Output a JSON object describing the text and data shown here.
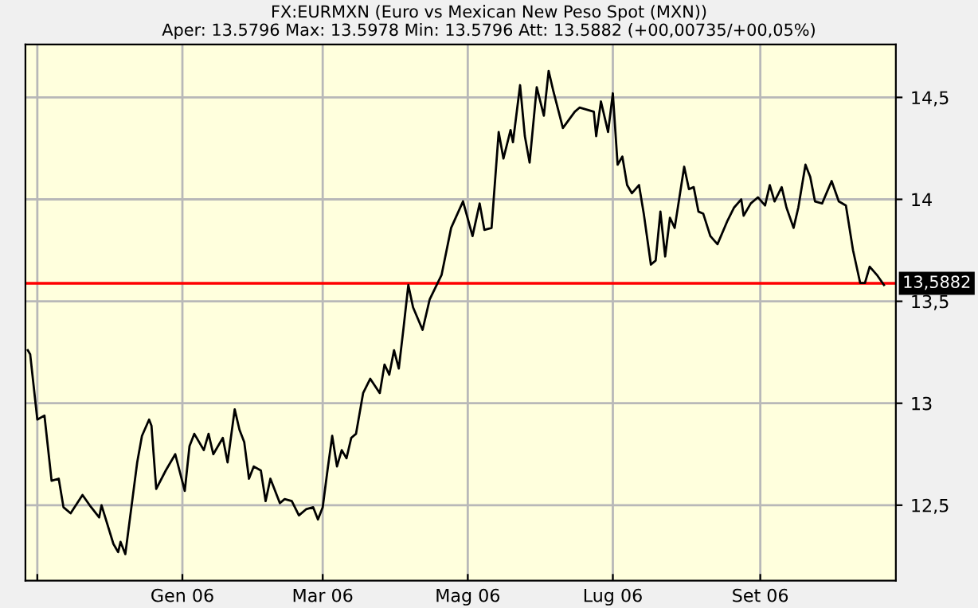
{
  "chart_data": {
    "type": "line",
    "title": "FX:EURMXN (Euro vs Mexican New Peso Spot (MXN))",
    "subtitle": "Aper: 13.5796 Max: 13.5978 Min: 13.5796 Att: 13.5882 (+00,00735/+00,05%)",
    "x": [
      "2005-10-28",
      "2005-10-29",
      "2005-11-01",
      "2005-11-04",
      "2005-11-07",
      "2005-11-10",
      "2005-11-12",
      "2005-11-15",
      "2005-11-20",
      "2005-11-23",
      "2005-11-27",
      "2005-11-28",
      "2005-12-03",
      "2005-12-05",
      "2005-12-06",
      "2005-12-08",
      "2005-12-11",
      "2005-12-13",
      "2005-12-15",
      "2005-12-18",
      "2005-12-19",
      "2005-12-21",
      "2005-12-25",
      "2005-12-29",
      "2006-01-02",
      "2006-01-04",
      "2006-01-06",
      "2006-01-10",
      "2006-01-12",
      "2006-01-14",
      "2006-01-18",
      "2006-01-20",
      "2006-01-23",
      "2006-01-25",
      "2006-01-27",
      "2006-01-29",
      "2006-01-31",
      "2006-02-03",
      "2006-02-05",
      "2006-02-07",
      "2006-02-11",
      "2006-02-13",
      "2006-02-16",
      "2006-02-19",
      "2006-02-22",
      "2006-02-25",
      "2006-02-27",
      "2006-03-01",
      "2006-03-03",
      "2006-03-05",
      "2006-03-07",
      "2006-03-09",
      "2006-03-11",
      "2006-03-13",
      "2006-03-15",
      "2006-03-18",
      "2006-03-21",
      "2006-03-25",
      "2006-03-27",
      "2006-03-29",
      "2006-03-31",
      "2006-04-02",
      "2006-04-04",
      "2006-04-06",
      "2006-04-08",
      "2006-04-12",
      "2006-04-15",
      "2006-04-20",
      "2006-04-24",
      "2006-04-29",
      "2006-05-03",
      "2006-05-06",
      "2006-05-08",
      "2006-05-11",
      "2006-05-14",
      "2006-05-16",
      "2006-05-19",
      "2006-05-20",
      "2006-05-23",
      "2006-05-25",
      "2006-05-27",
      "2006-05-30",
      "2006-06-02",
      "2006-06-04",
      "2006-06-06",
      "2006-06-10",
      "2006-06-15",
      "2006-06-17",
      "2006-06-23",
      "2006-06-24",
      "2006-06-26",
      "2006-06-29",
      "2006-07-01",
      "2006-07-03",
      "2006-07-05",
      "2006-07-07",
      "2006-07-09",
      "2006-07-12",
      "2006-07-14",
      "2006-07-17",
      "2006-07-19",
      "2006-07-21",
      "2006-07-23",
      "2006-07-25",
      "2006-07-27",
      "2006-07-31",
      "2006-08-02",
      "2006-08-04",
      "2006-08-06",
      "2006-08-08",
      "2006-08-11",
      "2006-08-14",
      "2006-08-18",
      "2006-08-21",
      "2006-08-24",
      "2006-08-25",
      "2006-08-28",
      "2006-08-31",
      "2006-09-03",
      "2006-09-05",
      "2006-09-07",
      "2006-09-10",
      "2006-09-12",
      "2006-09-15",
      "2006-09-17",
      "2006-09-20",
      "2006-09-22",
      "2006-09-24",
      "2006-09-27",
      "2006-10-01",
      "2006-10-04",
      "2006-10-07",
      "2006-10-10",
      "2006-10-13",
      "2006-10-15",
      "2006-10-17",
      "2006-10-20",
      "2006-10-23"
    ],
    "series": [
      {
        "color": "#000000",
        "values": [
          13.26,
          13.24,
          12.92,
          12.94,
          12.62,
          12.63,
          12.49,
          12.46,
          12.55,
          12.5,
          12.44,
          12.5,
          12.31,
          12.27,
          12.32,
          12.26,
          12.53,
          12.71,
          12.84,
          12.92,
          12.89,
          12.58,
          12.67,
          12.75,
          12.57,
          12.79,
          12.85,
          12.77,
          12.85,
          12.75,
          12.83,
          12.71,
          12.97,
          12.87,
          12.81,
          12.63,
          12.69,
          12.67,
          12.52,
          12.63,
          12.51,
          12.53,
          12.52,
          12.45,
          12.48,
          12.49,
          12.43,
          12.49,
          12.67,
          12.84,
          12.69,
          12.77,
          12.73,
          12.83,
          12.85,
          13.05,
          13.12,
          13.05,
          13.19,
          13.14,
          13.26,
          13.17,
          13.37,
          13.58,
          13.47,
          13.36,
          13.51,
          13.63,
          13.86,
          13.99,
          13.82,
          13.98,
          13.85,
          13.86,
          14.33,
          14.2,
          14.34,
          14.28,
          14.56,
          14.31,
          14.18,
          14.55,
          14.41,
          14.63,
          14.53,
          14.35,
          14.43,
          14.45,
          14.43,
          14.31,
          14.48,
          14.33,
          14.52,
          14.17,
          14.21,
          14.07,
          14.03,
          14.07,
          13.93,
          13.68,
          13.7,
          13.94,
          13.72,
          13.91,
          13.86,
          14.16,
          14.05,
          14.06,
          13.94,
          13.93,
          13.82,
          13.78,
          13.89,
          13.96,
          14.0,
          13.92,
          13.98,
          14.01,
          13.97,
          14.07,
          13.99,
          14.06,
          13.96,
          13.86,
          13.96,
          14.17,
          14.11,
          13.99,
          13.98,
          14.09,
          13.99,
          13.97,
          13.75,
          13.59,
          13.59,
          13.67,
          13.63,
          13.58
        ]
      }
    ],
    "xlim": [
      "2005-10-27",
      "2006-10-28"
    ],
    "xticks": [
      {
        "value": "2005-11-01",
        "label": null
      },
      {
        "value": "2006-01-01",
        "label": "Gen 06"
      },
      {
        "value": "2006-03-01",
        "label": "Mar 06"
      },
      {
        "value": "2006-05-01",
        "label": "Mag 06"
      },
      {
        "value": "2006-07-01",
        "label": "Lug 06"
      },
      {
        "value": "2006-09-01",
        "label": "Set 06"
      }
    ],
    "ylim": [
      12.13,
      14.76
    ],
    "yticks": [
      {
        "value": 12.5,
        "label": "12,5"
      },
      {
        "value": 13,
        "label": "13"
      },
      {
        "value": 13.5,
        "label": "13,5"
      },
      {
        "value": 14,
        "label": "14"
      },
      {
        "value": 14.5,
        "label": "14,5"
      }
    ],
    "ref_lines": [
      {
        "axis": "y",
        "value": 13.5882,
        "label": "13,5882",
        "color": "#ff0000"
      }
    ],
    "grid": true,
    "legend": false,
    "marker": "none",
    "line_style": "solid"
  }
}
